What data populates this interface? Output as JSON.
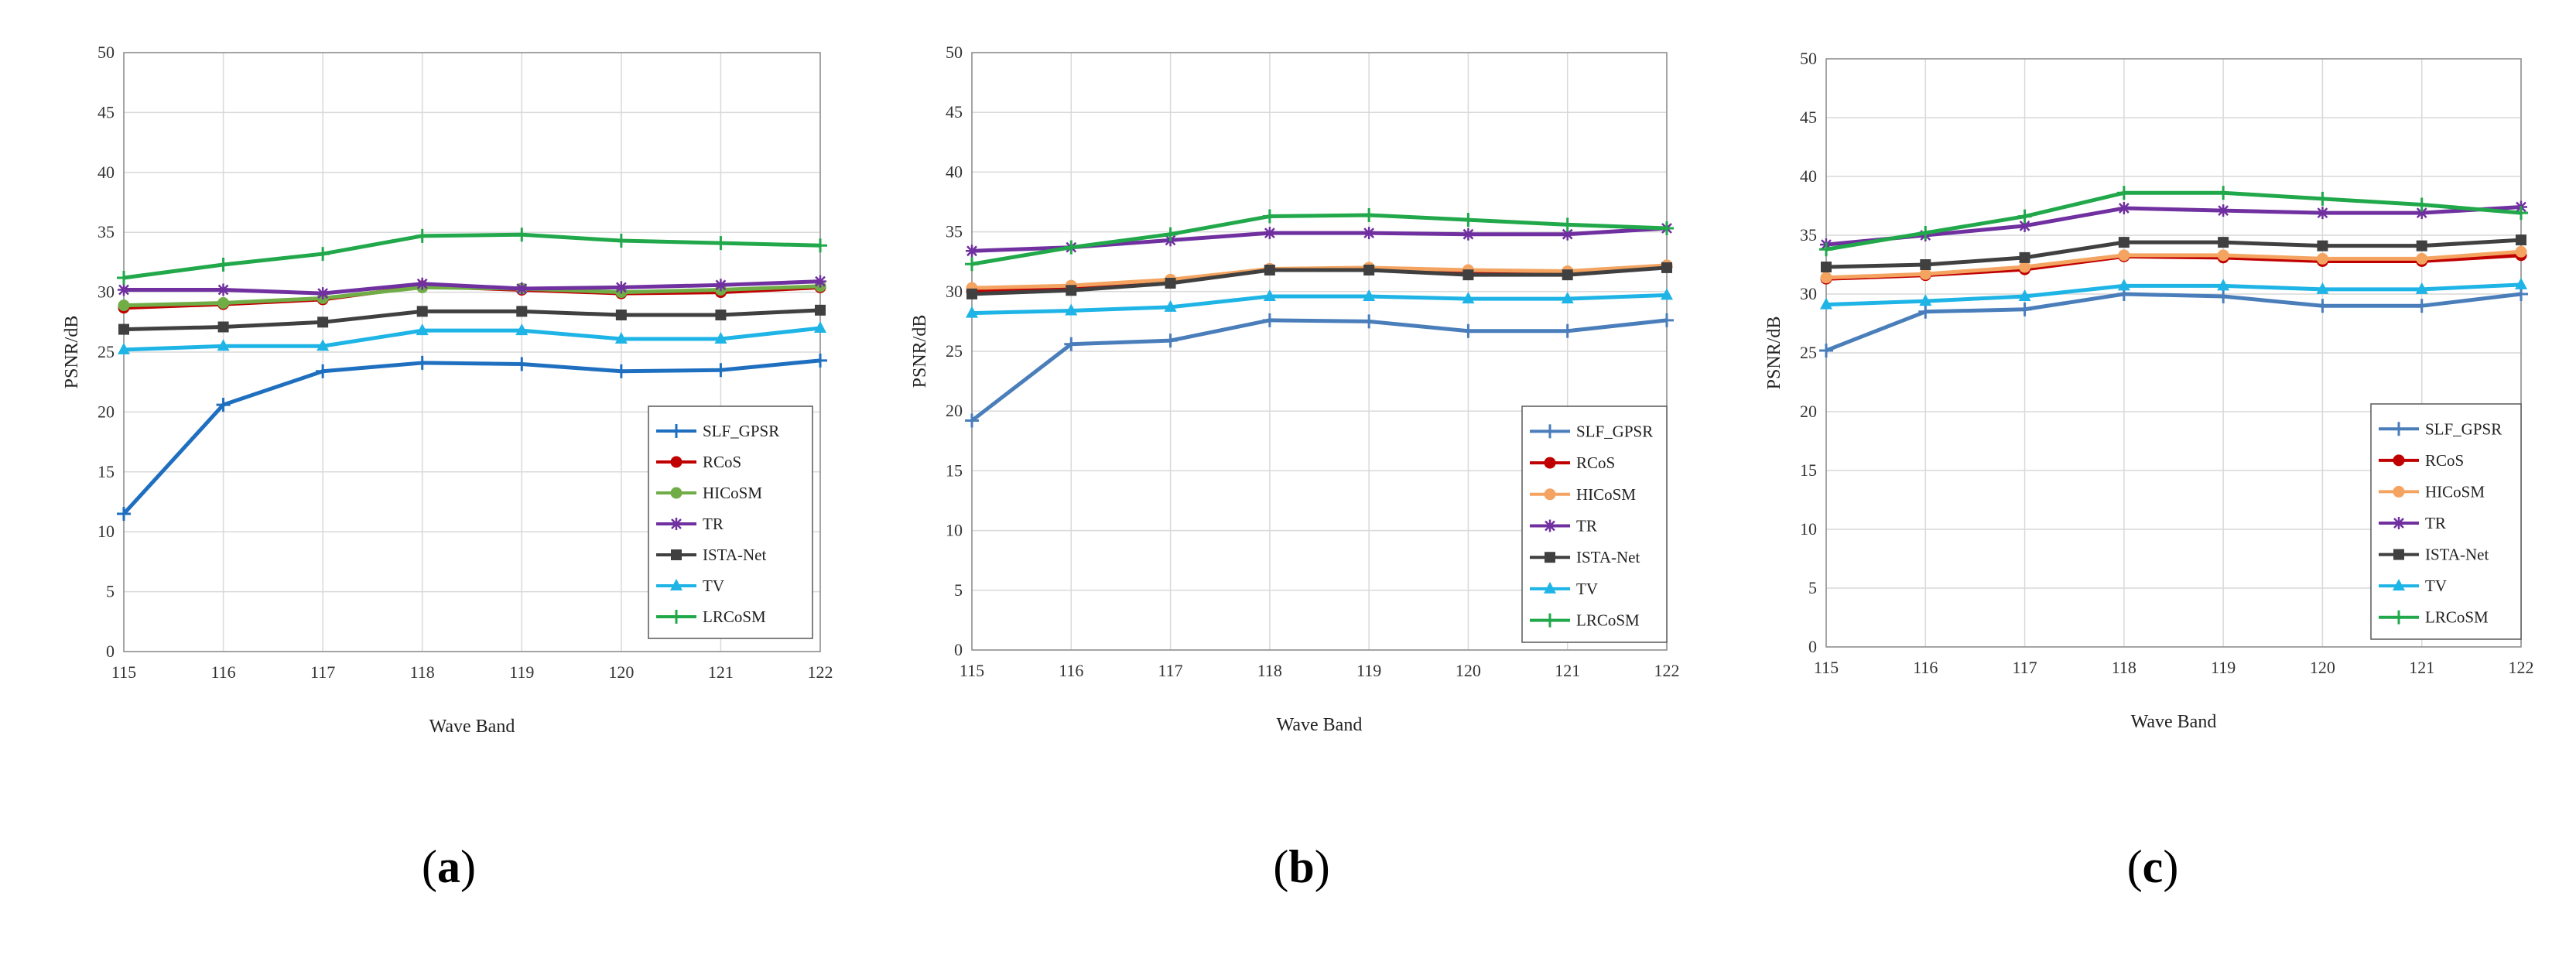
{
  "chart_data": [
    {
      "type": "line",
      "panel": "a",
      "caption": {
        "open": "(",
        "letter": "a",
        "close": ")"
      },
      "xlabel": "Wave Band",
      "ylabel": "PSNR/dB",
      "x": [
        115,
        116,
        117,
        118,
        119,
        120,
        121,
        122
      ],
      "ylim": [
        0,
        50
      ],
      "yticks": [
        0,
        5,
        10,
        15,
        20,
        25,
        30,
        35,
        40,
        45,
        50
      ],
      "grid": true,
      "legend_position": "bottom-right",
      "series": [
        {
          "name": "SLF_GPSR",
          "color": "#1f6fc0",
          "marker": "plus",
          "values": [
            11.5,
            20.6,
            23.4,
            24.1,
            24.0,
            23.4,
            23.5,
            24.3
          ]
        },
        {
          "name": "RCoS",
          "color": "#c00000",
          "marker": "circle",
          "values": [
            28.7,
            29.0,
            29.4,
            30.5,
            30.2,
            29.9,
            30.0,
            30.4
          ]
        },
        {
          "name": "HICoSM",
          "color": "#70ad47",
          "marker": "circle",
          "values": [
            28.9,
            29.1,
            29.5,
            30.4,
            30.3,
            30.0,
            30.2,
            30.5
          ]
        },
        {
          "name": "TR",
          "color": "#7030a0",
          "marker": "star",
          "values": [
            30.2,
            30.2,
            29.9,
            30.7,
            30.3,
            30.4,
            30.6,
            30.9
          ]
        },
        {
          "name": "ISTA-Net",
          "color": "#404040",
          "marker": "square",
          "values": [
            26.9,
            27.1,
            27.5,
            28.4,
            28.4,
            28.1,
            28.1,
            28.5
          ]
        },
        {
          "name": "TV",
          "color": "#1eb4e6",
          "marker": "triangle",
          "values": [
            25.2,
            25.5,
            25.5,
            26.8,
            26.8,
            26.1,
            26.1,
            27.0
          ]
        },
        {
          "name": "LRCoSM",
          "color": "#21a84a",
          "marker": "plus",
          "values": [
            31.2,
            32.3,
            33.2,
            34.7,
            34.8,
            34.3,
            34.1,
            33.9
          ]
        }
      ]
    },
    {
      "type": "line",
      "panel": "b",
      "caption": {
        "open": "(",
        "letter": "b",
        "close": ")"
      },
      "xlabel": "Wave Band",
      "ylabel": "PSNR/dB",
      "x": [
        115,
        116,
        117,
        118,
        119,
        120,
        121,
        122
      ],
      "ylim": [
        0,
        50
      ],
      "yticks": [
        0,
        5,
        10,
        15,
        20,
        25,
        30,
        35,
        40,
        45,
        50
      ],
      "grid": true,
      "legend_position": "bottom-right",
      "series": [
        {
          "name": "SLF_GPSR",
          "color": "#4a7ebb",
          "marker": "plus",
          "values": [
            19.2,
            25.6,
            25.9,
            27.6,
            27.5,
            26.7,
            26.7,
            27.6
          ]
        },
        {
          "name": "RCoS",
          "color": "#c00000",
          "marker": "circle",
          "values": [
            30.0,
            30.3,
            30.9,
            31.9,
            31.9,
            31.6,
            31.6,
            32.1
          ]
        },
        {
          "name": "HICoSM",
          "color": "#f4a460",
          "marker": "circle",
          "values": [
            30.3,
            30.5,
            31.0,
            31.9,
            32.0,
            31.8,
            31.7,
            32.2
          ]
        },
        {
          "name": "TR",
          "color": "#7030a0",
          "marker": "star",
          "values": [
            33.4,
            33.7,
            34.3,
            34.9,
            34.9,
            34.8,
            34.8,
            35.3
          ]
        },
        {
          "name": "ISTA-Net",
          "color": "#404040",
          "marker": "square",
          "values": [
            29.8,
            30.1,
            30.7,
            31.8,
            31.8,
            31.4,
            31.4,
            32.0
          ]
        },
        {
          "name": "TV",
          "color": "#1eb4e6",
          "marker": "triangle",
          "values": [
            28.2,
            28.4,
            28.7,
            29.6,
            29.6,
            29.4,
            29.4,
            29.7
          ]
        },
        {
          "name": "LRCoSM",
          "color": "#21a84a",
          "marker": "plus",
          "values": [
            32.3,
            33.7,
            34.8,
            36.3,
            36.4,
            36.0,
            35.6,
            35.3
          ]
        }
      ]
    },
    {
      "type": "line",
      "panel": "c",
      "caption": {
        "open": "(",
        "letter": "c",
        "close": ")"
      },
      "xlabel": "Wave Band",
      "ylabel": "PSNR/dB",
      "x": [
        115,
        116,
        117,
        118,
        119,
        120,
        121,
        122
      ],
      "ylim": [
        0,
        50
      ],
      "yticks": [
        0,
        5,
        10,
        15,
        20,
        25,
        30,
        35,
        40,
        45,
        50
      ],
      "grid": true,
      "legend_position": "bottom-right",
      "series": [
        {
          "name": "SLF_GPSR",
          "color": "#4a7ebb",
          "marker": "plus",
          "values": [
            25.2,
            28.5,
            28.7,
            30.0,
            29.8,
            29.0,
            29.0,
            30.0
          ]
        },
        {
          "name": "RCoS",
          "color": "#c00000",
          "marker": "circle",
          "values": [
            31.3,
            31.6,
            32.1,
            33.2,
            33.1,
            32.8,
            32.8,
            33.3
          ]
        },
        {
          "name": "HICoSM",
          "color": "#f4a460",
          "marker": "circle",
          "values": [
            31.4,
            31.7,
            32.3,
            33.3,
            33.3,
            33.0,
            33.0,
            33.6
          ]
        },
        {
          "name": "TR",
          "color": "#7030a0",
          "marker": "star",
          "values": [
            34.2,
            35.0,
            35.8,
            37.3,
            37.1,
            36.9,
            36.9,
            37.4
          ]
        },
        {
          "name": "ISTA-Net",
          "color": "#404040",
          "marker": "square",
          "values": [
            32.3,
            32.5,
            33.1,
            34.4,
            34.4,
            34.1,
            34.1,
            34.6
          ]
        },
        {
          "name": "TV",
          "color": "#1eb4e6",
          "marker": "triangle",
          "values": [
            29.1,
            29.4,
            29.8,
            30.7,
            30.7,
            30.4,
            30.4,
            30.8
          ]
        },
        {
          "name": "LRCoSM",
          "color": "#21a84a",
          "marker": "plus",
          "values": [
            33.8,
            35.2,
            36.6,
            38.6,
            38.6,
            38.1,
            37.6,
            36.9
          ]
        }
      ]
    }
  ]
}
